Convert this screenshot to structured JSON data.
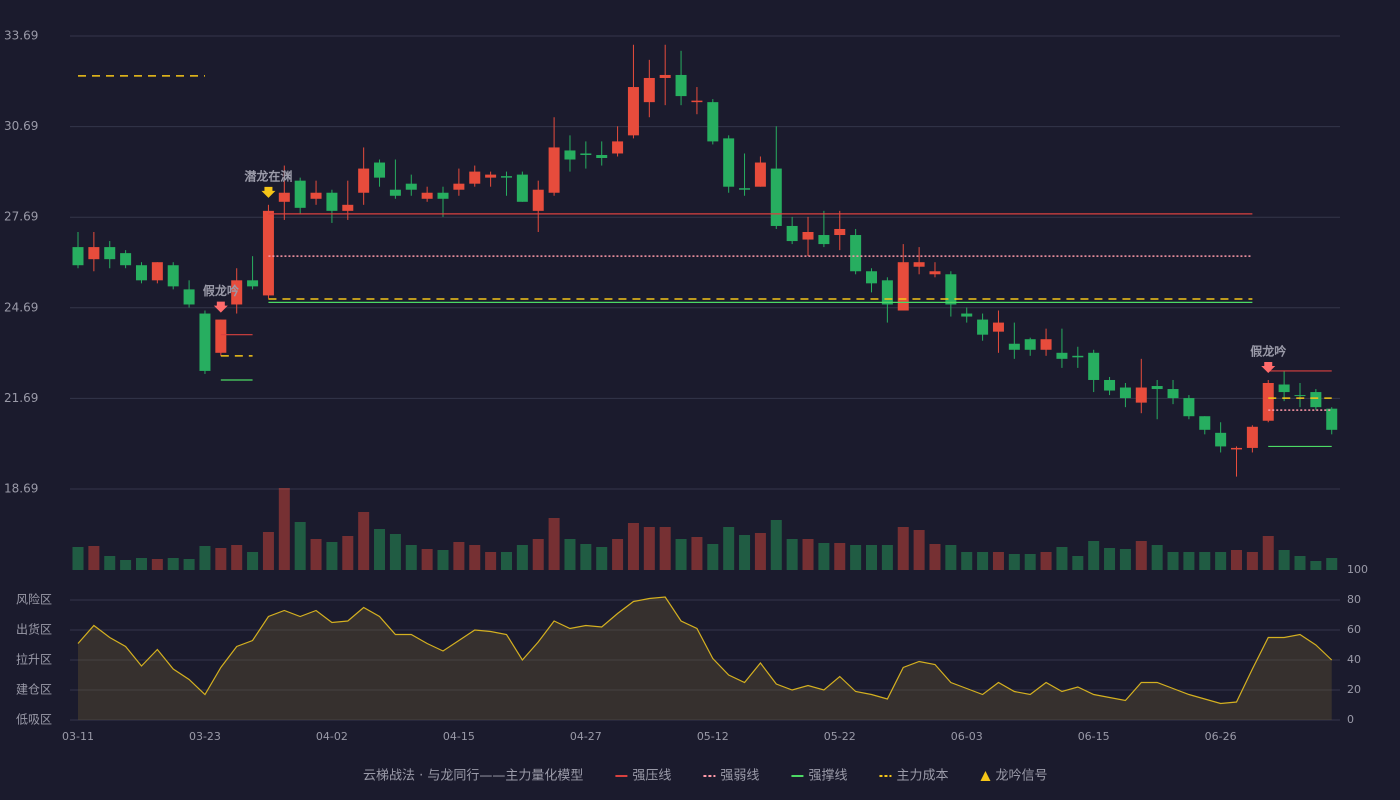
{
  "chart_data": {
    "type": "candlestick",
    "categories": [
      "03-11",
      null,
      null,
      null,
      null,
      null,
      null,
      null,
      "03-23",
      null,
      null,
      null,
      null,
      null,
      null,
      null,
      "04-02",
      null,
      null,
      null,
      null,
      null,
      null,
      null,
      "04-15",
      null,
      null,
      null,
      null,
      null,
      null,
      null,
      "04-27",
      null,
      null,
      null,
      null,
      null,
      null,
      null,
      "05-12",
      null,
      null,
      null,
      null,
      null,
      null,
      null,
      "05-22",
      null,
      null,
      null,
      null,
      null,
      null,
      null,
      "06-03",
      null,
      null,
      null,
      null,
      null,
      null,
      null,
      "06-15",
      null,
      null,
      null,
      null,
      null,
      null,
      null,
      "06-26",
      null,
      null,
      null,
      null,
      null,
      null,
      null
    ],
    "open": [
      26.7,
      26.3,
      26.7,
      26.5,
      26.1,
      25.6,
      26.1,
      25.3,
      24.5,
      23.2,
      24.8,
      25.6,
      25.1,
      28.2,
      28.9,
      28.3,
      28.5,
      27.9,
      28.5,
      29.5,
      28.6,
      28.8,
      28.3,
      28.5,
      28.6,
      28.8,
      29.0,
      29.05,
      29.1,
      27.9,
      28.5,
      29.9,
      29.8,
      29.75,
      29.8,
      30.4,
      31.5,
      32.3,
      32.4,
      31.5,
      31.5,
      30.3,
      28.65,
      28.7,
      29.3,
      27.4,
      26.95,
      27.1,
      27.1,
      27.1,
      25.9,
      25.6,
      24.6,
      26.05,
      25.8,
      25.8,
      24.5,
      24.3,
      23.9,
      23.5,
      23.65,
      23.3,
      23.2,
      23.1,
      23.2,
      22.3,
      22.05,
      21.55,
      22.1,
      22.0,
      21.7,
      21.1,
      20.55,
      20.0,
      20.05,
      20.95,
      22.15,
      21.8,
      21.9,
      21.35
    ],
    "close": [
      26.1,
      26.7,
      26.3,
      26.1,
      25.6,
      26.2,
      25.4,
      24.8,
      22.6,
      24.3,
      25.6,
      25.4,
      27.9,
      28.5,
      28.0,
      28.5,
      27.9,
      28.1,
      29.3,
      29.0,
      28.4,
      28.6,
      28.5,
      28.3,
      28.8,
      29.2,
      29.1,
      29.0,
      28.2,
      28.6,
      30.0,
      29.6,
      29.75,
      29.65,
      30.2,
      32.0,
      32.3,
      32.4,
      31.7,
      31.55,
      30.2,
      28.7,
      28.6,
      29.5,
      27.4,
      26.9,
      27.2,
      26.8,
      27.3,
      25.9,
      25.5,
      24.8,
      26.2,
      26.2,
      25.9,
      24.8,
      24.4,
      23.8,
      24.2,
      23.3,
      23.3,
      23.65,
      23.0,
      23.05,
      22.3,
      21.95,
      21.7,
      22.05,
      22.0,
      21.7,
      21.1,
      20.65,
      20.1,
      20.05,
      20.75,
      22.2,
      21.9,
      21.77,
      21.4,
      20.65
    ],
    "high": [
      27.2,
      27.2,
      26.9,
      26.6,
      26.2,
      26.2,
      26.2,
      25.6,
      24.6,
      24.3,
      26.0,
      26.4,
      28.1,
      29.4,
      29.0,
      28.9,
      28.6,
      28.9,
      30.0,
      29.6,
      29.6,
      29.1,
      28.7,
      28.7,
      29.3,
      29.4,
      29.2,
      29.2,
      29.2,
      28.9,
      31.0,
      30.4,
      30.2,
      30.2,
      30.7,
      33.4,
      32.9,
      33.4,
      33.2,
      32.0,
      31.6,
      30.4,
      29.8,
      29.7,
      30.7,
      27.7,
      27.7,
      27.9,
      27.9,
      27.3,
      26.0,
      25.7,
      26.8,
      26.7,
      26.2,
      25.9,
      24.7,
      24.5,
      24.6,
      24.2,
      23.7,
      24.0,
      24.0,
      23.4,
      23.3,
      22.4,
      22.2,
      23.0,
      22.3,
      22.3,
      21.8,
      21.1,
      20.9,
      20.1,
      20.8,
      22.3,
      22.6,
      22.2,
      22.0,
      21.4
    ],
    "low": [
      26.0,
      25.9,
      26.0,
      26.0,
      25.5,
      25.5,
      25.3,
      24.7,
      22.5,
      23.1,
      24.5,
      25.3,
      25.0,
      27.6,
      27.8,
      28.1,
      27.5,
      27.6,
      28.1,
      28.7,
      28.3,
      28.4,
      28.2,
      27.7,
      28.4,
      28.7,
      28.7,
      28.4,
      28.2,
      27.2,
      28.4,
      29.2,
      29.3,
      29.4,
      29.7,
      30.3,
      31.0,
      31.4,
      31.4,
      31.1,
      30.1,
      28.5,
      28.4,
      28.7,
      27.3,
      26.8,
      26.4,
      26.7,
      26.6,
      25.8,
      25.2,
      24.2,
      24.6,
      25.8,
      25.7,
      24.4,
      24.2,
      23.6,
      23.2,
      23.0,
      23.1,
      23.1,
      22.7,
      22.7,
      21.9,
      21.8,
      21.4,
      21.2,
      21.0,
      21.5,
      21.0,
      20.5,
      19.9,
      19.1,
      19.9,
      20.9,
      21.6,
      21.4,
      21.3,
      20.5
    ],
    "volume": [
      23,
      24,
      14,
      10,
      12,
      11,
      12,
      11,
      24,
      22,
      25,
      18,
      38,
      82,
      48,
      31,
      28,
      34,
      58,
      41,
      36,
      25,
      21,
      20,
      28,
      25,
      18,
      18,
      25,
      31,
      52,
      31,
      26,
      23,
      31,
      47,
      43,
      43,
      31,
      33,
      26,
      43,
      35,
      37,
      50,
      31,
      31,
      27,
      27,
      25,
      25,
      25,
      43,
      40,
      26,
      25,
      18,
      18,
      18,
      16,
      16,
      18,
      23,
      14,
      29,
      22,
      21,
      29,
      25,
      18,
      18,
      18,
      18,
      20,
      18,
      34,
      20,
      14,
      9,
      12
    ],
    "up_color": "#e74c3c",
    "down_color": "#27ae60",
    "ylim": [
      18.69,
      33.69
    ],
    "yticks": [
      18.69,
      21.69,
      24.69,
      27.69,
      30.69,
      33.69
    ],
    "grid": true,
    "levels": [
      {
        "name": "强压线",
        "color": "#d9413f",
        "dash": "none",
        "values": [
          null,
          null,
          null,
          null,
          null,
          null,
          null,
          null,
          null,
          23.8,
          23.8,
          23.8,
          27.8,
          27.8,
          27.8,
          27.8,
          27.8,
          27.8,
          27.8,
          27.8,
          27.8,
          27.8,
          27.8,
          27.8,
          27.8,
          27.8,
          27.8,
          27.8,
          27.8,
          27.8,
          27.8,
          27.8,
          27.8,
          27.8,
          27.8,
          27.8,
          27.8,
          27.8,
          27.8,
          27.8,
          27.8,
          27.8,
          27.8,
          27.8,
          27.8,
          27.8,
          27.8,
          27.8,
          27.8,
          27.8,
          27.8,
          27.8,
          27.8,
          27.8,
          27.8,
          27.8,
          27.8,
          27.8,
          27.8,
          27.8,
          27.8,
          27.8,
          27.8,
          27.8,
          27.8,
          27.8,
          27.8,
          27.8,
          27.8,
          27.8,
          27.8,
          27.8,
          27.8,
          27.8,
          27.8,
          22.6,
          22.6,
          22.6,
          22.6,
          22.6
        ]
      },
      {
        "name": "强弱线",
        "color": "#ff9aa8",
        "dash": "2 2",
        "values": [
          null,
          null,
          null,
          null,
          null,
          null,
          null,
          null,
          null,
          null,
          null,
          null,
          26.4,
          26.4,
          26.4,
          26.4,
          26.4,
          26.4,
          26.4,
          26.4,
          26.4,
          26.4,
          26.4,
          26.4,
          26.4,
          26.4,
          26.4,
          26.4,
          26.4,
          26.4,
          26.4,
          26.4,
          26.4,
          26.4,
          26.4,
          26.4,
          26.4,
          26.4,
          26.4,
          26.4,
          26.4,
          26.4,
          26.4,
          26.4,
          26.4,
          26.4,
          26.4,
          26.4,
          26.4,
          26.4,
          26.4,
          26.4,
          26.4,
          26.4,
          26.4,
          26.4,
          26.4,
          26.4,
          26.4,
          26.4,
          26.4,
          26.4,
          26.4,
          26.4,
          26.4,
          26.4,
          26.4,
          26.4,
          26.4,
          26.4,
          26.4,
          26.4,
          26.4,
          26.4,
          26.4,
          21.3,
          21.3,
          21.3,
          21.3,
          21.3
        ]
      },
      {
        "name": "强撑线",
        "color": "#4cd964",
        "dash": "none",
        "values": [
          null,
          null,
          null,
          null,
          null,
          null,
          null,
          null,
          null,
          22.3,
          22.3,
          22.3,
          24.87,
          24.87,
          24.87,
          24.87,
          24.87,
          24.87,
          24.87,
          24.87,
          24.87,
          24.87,
          24.87,
          24.87,
          24.87,
          24.87,
          24.87,
          24.87,
          24.87,
          24.87,
          24.87,
          24.87,
          24.87,
          24.87,
          24.87,
          24.87,
          24.87,
          24.87,
          24.87,
          24.87,
          24.87,
          24.87,
          24.87,
          24.87,
          24.87,
          24.87,
          24.87,
          24.87,
          24.87,
          24.87,
          24.87,
          24.87,
          24.87,
          24.87,
          24.87,
          24.87,
          24.87,
          24.87,
          24.87,
          24.87,
          24.87,
          24.87,
          24.87,
          24.87,
          24.87,
          24.87,
          24.87,
          24.87,
          24.87,
          24.87,
          24.87,
          24.87,
          24.87,
          24.87,
          24.87,
          20.1,
          20.1,
          20.1,
          20.1,
          20.1
        ]
      },
      {
        "name": "主力成本",
        "color": "#f5c518",
        "dash": "8 6",
        "values": [
          32.37,
          32.37,
          32.37,
          32.37,
          32.37,
          32.37,
          32.37,
          32.37,
          32.37,
          23.1,
          23.1,
          23.1,
          24.98,
          24.98,
          24.98,
          24.98,
          24.98,
          24.98,
          24.98,
          24.98,
          24.98,
          24.98,
          24.98,
          24.98,
          24.98,
          24.98,
          24.98,
          24.98,
          24.98,
          24.98,
          24.98,
          24.98,
          24.98,
          24.98,
          24.98,
          24.98,
          24.98,
          24.98,
          24.98,
          24.98,
          24.98,
          24.98,
          24.98,
          24.98,
          24.98,
          24.98,
          24.98,
          24.98,
          24.98,
          24.98,
          24.98,
          24.98,
          24.98,
          24.98,
          24.98,
          24.98,
          24.98,
          24.98,
          24.98,
          24.98,
          24.98,
          24.98,
          24.98,
          24.98,
          24.98,
          24.98,
          24.98,
          24.98,
          24.98,
          24.98,
          24.98,
          24.98,
          24.98,
          24.98,
          24.98,
          21.7,
          21.7,
          21.7,
          21.7,
          21.7
        ]
      }
    ],
    "annotations": [
      {
        "text": "假龙吟",
        "at": 9,
        "color": "#ff6b6b"
      },
      {
        "text": "潜龙在渊",
        "at": 12,
        "color": "#f5c518"
      },
      {
        "text": "假龙吟",
        "at": 75,
        "color": "#ff6b6b"
      }
    ],
    "indicator": {
      "values": [
        51,
        63,
        55,
        49,
        36,
        47,
        34,
        27,
        17,
        35,
        49,
        53,
        69,
        73,
        69,
        73,
        65,
        66,
        75,
        69,
        57,
        57,
        51,
        46,
        53,
        60,
        59,
        57,
        40,
        52,
        66,
        61,
        63,
        62,
        71,
        79,
        81,
        82,
        66,
        61,
        41,
        30,
        25,
        38,
        24,
        20,
        23,
        20,
        29,
        19,
        17,
        14,
        35,
        39,
        37,
        25,
        21,
        17,
        25,
        19,
        17,
        25,
        19,
        22,
        17,
        15,
        13,
        25,
        25,
        21,
        17,
        14,
        11,
        12,
        34,
        55,
        55,
        57,
        50,
        40
      ],
      "color": "#d4b020",
      "y2lim": [
        0,
        100
      ],
      "y2ticks": [
        0,
        20,
        40,
        60,
        80,
        100
      ],
      "y2tick_colors": [
        "#e04545",
        "#ff6a3d",
        "#4a90e2",
        "#e040e0",
        "#f0a030",
        "#44dd44"
      ],
      "zones": [
        {
          "label": "风险区",
          "value": 80,
          "color": "#f0a040"
        },
        {
          "label": "出货区",
          "value": 60,
          "color": "#e040e0"
        },
        {
          "label": "拉升区",
          "value": 40,
          "color": "#4a90e2"
        },
        {
          "label": "建仓区",
          "value": 20,
          "color": "#ff5050"
        },
        {
          "label": "低吸区",
          "value": 0,
          "color": "#ff4040"
        }
      ]
    },
    "legend_title": "云梯战法 · 与龙同行——主力量化模型",
    "signal_name": "龙吟信号",
    "signal_color": "#f5c518"
  }
}
